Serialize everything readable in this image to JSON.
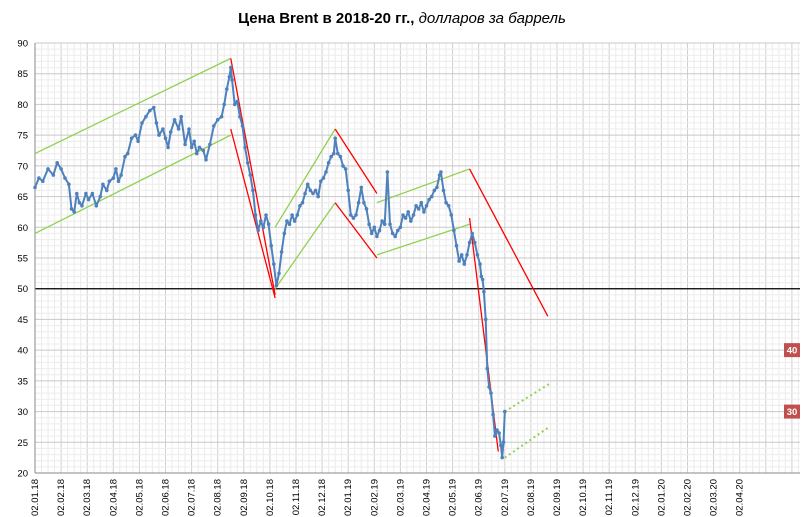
{
  "title_bold": "Цена Brent в 2018-20 гг.,",
  "title_italic": " долларов за баррель",
  "chart_data": {
    "type": "line",
    "title": "Цена Brent в 2018-20 гг., долларов за баррель",
    "ylim": [
      20,
      90
    ],
    "yticks": [
      20,
      25,
      30,
      35,
      40,
      45,
      50,
      55,
      60,
      65,
      70,
      75,
      80,
      85,
      90
    ],
    "xticks": [
      "02.01.18",
      "02.02.18",
      "02.03.18",
      "02.04.18",
      "02.05.18",
      "02.06.18",
      "02.07.18",
      "02.08.18",
      "02.09.18",
      "02.10.18",
      "02.11.18",
      "02.12.18",
      "02.01.19",
      "02.02.19",
      "02.03.19",
      "02.04.19",
      "02.05.19",
      "02.06.19",
      "02.07.19",
      "02.08.19",
      "02.09.19",
      "02.10.19",
      "02.11.19",
      "02.12.19",
      "02.01.20",
      "02.02.20",
      "02.03.20",
      "02.04.20"
    ],
    "grid": true,
    "reference_line": 50,
    "series": [
      {
        "color": "#4f81bd",
        "points": [
          [
            0,
            66.5
          ],
          [
            0.15,
            68
          ],
          [
            0.3,
            67.5
          ],
          [
            0.5,
            69.5
          ],
          [
            0.7,
            68.5
          ],
          [
            0.85,
            70.5
          ],
          [
            1.0,
            69.5
          ],
          [
            1.15,
            68
          ],
          [
            1.3,
            67
          ],
          [
            1.4,
            63
          ],
          [
            1.5,
            62.5
          ],
          [
            1.6,
            65.5
          ],
          [
            1.7,
            64
          ],
          [
            1.8,
            63.5
          ],
          [
            1.95,
            65.5
          ],
          [
            2.05,
            64.5
          ],
          [
            2.2,
            65.5
          ],
          [
            2.35,
            63.5
          ],
          [
            2.5,
            65
          ],
          [
            2.6,
            67
          ],
          [
            2.75,
            66
          ],
          [
            2.85,
            67.5
          ],
          [
            3.0,
            68
          ],
          [
            3.1,
            69.5
          ],
          [
            3.2,
            67.5
          ],
          [
            3.3,
            68.5
          ],
          [
            3.45,
            71.5
          ],
          [
            3.55,
            72
          ],
          [
            3.7,
            74.5
          ],
          [
            3.85,
            75
          ],
          [
            3.95,
            74
          ],
          [
            4.1,
            77
          ],
          [
            4.25,
            78
          ],
          [
            4.4,
            79
          ],
          [
            4.55,
            79.5
          ],
          [
            4.65,
            77
          ],
          [
            4.75,
            75
          ],
          [
            4.9,
            76
          ],
          [
            5.0,
            74.5
          ],
          [
            5.1,
            73
          ],
          [
            5.2,
            75.5
          ],
          [
            5.35,
            77.5
          ],
          [
            5.5,
            76
          ],
          [
            5.6,
            78
          ],
          [
            5.75,
            73.5
          ],
          [
            5.9,
            76
          ],
          [
            6.0,
            73
          ],
          [
            6.1,
            74
          ],
          [
            6.2,
            72
          ],
          [
            6.3,
            73
          ],
          [
            6.45,
            72.5
          ],
          [
            6.55,
            71
          ],
          [
            6.7,
            73.5
          ],
          [
            6.85,
            76.5
          ],
          [
            7.0,
            77.5
          ],
          [
            7.15,
            78
          ],
          [
            7.25,
            80
          ],
          [
            7.35,
            82.5
          ],
          [
            7.45,
            84.5
          ],
          [
            7.5,
            86
          ],
          [
            7.55,
            84
          ],
          [
            7.65,
            80
          ],
          [
            7.75,
            80.5
          ],
          [
            7.85,
            78
          ],
          [
            7.95,
            76.5
          ],
          [
            8.05,
            73
          ],
          [
            8.15,
            70.5
          ],
          [
            8.25,
            68.5
          ],
          [
            8.35,
            66
          ],
          [
            8.45,
            62
          ],
          [
            8.55,
            59.5
          ],
          [
            8.65,
            61
          ],
          [
            8.75,
            60
          ],
          [
            8.85,
            62
          ],
          [
            8.95,
            60.5
          ],
          [
            9.05,
            57
          ],
          [
            9.15,
            54
          ],
          [
            9.25,
            50.5
          ],
          [
            9.35,
            52.5
          ],
          [
            9.45,
            56
          ],
          [
            9.55,
            59
          ],
          [
            9.65,
            61
          ],
          [
            9.75,
            60.5
          ],
          [
            9.85,
            62
          ],
          [
            9.95,
            61
          ],
          [
            10.05,
            62
          ],
          [
            10.15,
            63.5
          ],
          [
            10.25,
            64
          ],
          [
            10.35,
            65.5
          ],
          [
            10.45,
            67
          ],
          [
            10.55,
            66
          ],
          [
            10.65,
            65.5
          ],
          [
            10.75,
            66
          ],
          [
            10.85,
            65
          ],
          [
            10.95,
            67.5
          ],
          [
            11.05,
            68
          ],
          [
            11.15,
            69
          ],
          [
            11.25,
            70.5
          ],
          [
            11.35,
            71.5
          ],
          [
            11.45,
            72
          ],
          [
            11.5,
            74.5
          ],
          [
            11.6,
            72
          ],
          [
            11.7,
            71.5
          ],
          [
            11.8,
            70
          ],
          [
            11.9,
            69.5
          ],
          [
            12.0,
            66
          ],
          [
            12.1,
            62
          ],
          [
            12.2,
            61.5
          ],
          [
            12.3,
            62
          ],
          [
            12.4,
            64
          ],
          [
            12.5,
            66.5
          ],
          [
            12.6,
            64
          ],
          [
            12.7,
            63
          ],
          [
            12.8,
            60.5
          ],
          [
            12.9,
            59
          ],
          [
            13.0,
            60
          ],
          [
            13.1,
            58.5
          ],
          [
            13.2,
            59.5
          ],
          [
            13.3,
            61
          ],
          [
            13.4,
            60.5
          ],
          [
            13.5,
            69
          ],
          [
            13.6,
            60.5
          ],
          [
            13.7,
            59
          ],
          [
            13.8,
            58.5
          ],
          [
            13.9,
            59.5
          ],
          [
            14.0,
            60
          ],
          [
            14.1,
            62
          ],
          [
            14.2,
            61.5
          ],
          [
            14.3,
            62.5
          ],
          [
            14.4,
            61
          ],
          [
            14.5,
            62
          ],
          [
            14.6,
            63.5
          ],
          [
            14.7,
            63
          ],
          [
            14.8,
            64
          ],
          [
            14.9,
            62.5
          ],
          [
            15.0,
            63.5
          ],
          [
            15.1,
            64.5
          ],
          [
            15.2,
            65
          ],
          [
            15.3,
            66
          ],
          [
            15.4,
            66.5
          ],
          [
            15.5,
            68.5
          ],
          [
            15.55,
            69
          ],
          [
            15.65,
            66
          ],
          [
            15.75,
            64
          ],
          [
            15.85,
            63.5
          ],
          [
            15.95,
            62
          ],
          [
            16.05,
            59.5
          ],
          [
            16.15,
            57
          ],
          [
            16.25,
            54.5
          ],
          [
            16.35,
            55.5
          ],
          [
            16.45,
            54
          ],
          [
            16.55,
            55.5
          ],
          [
            16.65,
            57.5
          ],
          [
            16.75,
            59
          ],
          [
            16.85,
            57.5
          ],
          [
            16.95,
            55.5
          ],
          [
            17.05,
            54
          ],
          [
            17.1,
            52
          ],
          [
            17.15,
            51.5
          ],
          [
            17.2,
            49.5
          ],
          [
            17.27,
            45
          ],
          [
            17.33,
            37
          ],
          [
            17.4,
            34
          ],
          [
            17.47,
            33
          ],
          [
            17.55,
            29.5
          ],
          [
            17.62,
            26
          ],
          [
            17.7,
            27
          ],
          [
            17.78,
            26.5
          ],
          [
            17.85,
            24.5
          ],
          [
            17.9,
            22.5
          ],
          [
            17.95,
            25
          ],
          [
            18.0,
            30
          ]
        ]
      }
    ],
    "trend_lines": [
      {
        "color": "#92d050",
        "from": [
          0,
          72
        ],
        "to": [
          7.5,
          87.5
        ]
      },
      {
        "color": "#92d050",
        "from": [
          0,
          59
        ],
        "to": [
          7.5,
          75
        ]
      },
      {
        "color": "#ff0000",
        "from": [
          7.5,
          87.5
        ],
        "to": [
          9.2,
          49
        ]
      },
      {
        "color": "#ff0000",
        "from": [
          7.5,
          76
        ],
        "to": [
          9.2,
          48.5
        ]
      },
      {
        "color": "#92d050",
        "from": [
          9.2,
          50
        ],
        "to": [
          11.5,
          64
        ]
      },
      {
        "color": "#92d050",
        "from": [
          9.2,
          60
        ],
        "to": [
          11.5,
          76
        ]
      },
      {
        "color": "#ff0000",
        "from": [
          11.5,
          76
        ],
        "to": [
          13.1,
          65.5
        ]
      },
      {
        "color": "#ff0000",
        "from": [
          11.5,
          64
        ],
        "to": [
          13.1,
          55
        ]
      },
      {
        "color": "#92d050",
        "from": [
          13.1,
          64
        ],
        "to": [
          16.65,
          69.5
        ]
      },
      {
        "color": "#92d050",
        "from": [
          13.1,
          55.5
        ],
        "to": [
          16.65,
          60.5
        ]
      },
      {
        "color": "#ff0000",
        "from": [
          16.65,
          69.5
        ],
        "to": [
          19.65,
          45.5
        ]
      },
      {
        "color": "#ff0000",
        "from": [
          16.65,
          61.5
        ],
        "to": [
          17.75,
          23.5
        ]
      },
      {
        "color": "#92d050",
        "dashed": true,
        "from": [
          18.0,
          30
        ],
        "to": [
          19.7,
          34.5
        ]
      },
      {
        "color": "#92d050",
        "dashed": true,
        "from": [
          18.0,
          22.5
        ],
        "to": [
          19.7,
          27.5
        ]
      }
    ],
    "labels": [
      {
        "text": "40",
        "value": 40,
        "color": "#c0504d"
      },
      {
        "text": "30",
        "value": 30,
        "color": "#c0504d"
      }
    ]
  }
}
